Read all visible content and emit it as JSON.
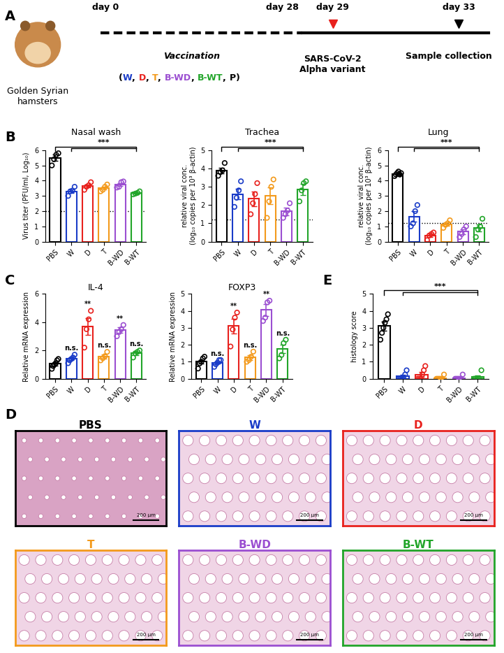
{
  "panel_labels": [
    "A",
    "B",
    "C",
    "D",
    "E"
  ],
  "timeline": {
    "subject": "Golden Syrian\nhamsters",
    "days": [
      "day 0",
      "day 28",
      "day 29",
      "day 33"
    ],
    "vaccination": "Vaccination",
    "groups_open": "(",
    "groups_separator": ", ",
    "groups_close": ")",
    "groups": [
      {
        "text": "W",
        "color": "#1a3cc8"
      },
      {
        "text": "D",
        "color": "#e8211d"
      },
      {
        "text": "T",
        "color": "#f39a1c"
      },
      {
        "text": "B-WD",
        "color": "#9b4fd1"
      },
      {
        "text": "B-WT",
        "color": "#22a52a"
      },
      {
        "text": "P",
        "color": "#000000"
      }
    ],
    "challenge": "SARS-CoV-2\nAlpha variant",
    "collection": "Sample collection"
  },
  "chart_data": [
    {
      "type": "bar",
      "title": "Nasal wash",
      "y_label": "Virus titer (PFU/ml, Log₁₀)",
      "categories": [
        "PBS",
        "W",
        "D",
        "T",
        "B-WD",
        "B-WT"
      ],
      "values": [
        5.5,
        3.3,
        3.65,
        3.5,
        3.75,
        3.2
      ],
      "errors": [
        0.2,
        0.12,
        0.1,
        0.1,
        0.1,
        0.05
      ],
      "points": [
        [
          5.0,
          5.4,
          5.7,
          5.8
        ],
        [
          3.0,
          3.3,
          3.35,
          3.6
        ],
        [
          3.4,
          3.6,
          3.7,
          3.9
        ],
        [
          3.3,
          3.4,
          3.6,
          3.75
        ],
        [
          3.55,
          3.6,
          3.9,
          3.95
        ],
        [
          3.1,
          3.15,
          3.2,
          3.3
        ]
      ],
      "colors": [
        "#000000",
        "#1a3cc8",
        "#e8211d",
        "#f39a1c",
        "#9b4fd1",
        "#22a52a"
      ],
      "ylim": [
        0,
        6
      ],
      "yticks": [
        0,
        1,
        2,
        3,
        4,
        5,
        6
      ],
      "limit_of_detection": 2,
      "significance": "***"
    },
    {
      "type": "bar",
      "title": "Trachea",
      "y_label": "relative viral conc.\n(log₁₀ copies per 10³ β-actin)",
      "categories": [
        "PBS",
        "W",
        "D",
        "T",
        "B-WD",
        "B-WT"
      ],
      "values": [
        3.9,
        2.6,
        2.35,
        2.5,
        1.65,
        2.85
      ],
      "errors": [
        0.15,
        0.3,
        0.4,
        0.45,
        0.2,
        0.3
      ],
      "points": [
        [
          3.6,
          3.8,
          3.9,
          4.3
        ],
        [
          1.9,
          2.4,
          2.8,
          3.3
        ],
        [
          1.5,
          2.1,
          2.6,
          3.2
        ],
        [
          1.3,
          2.2,
          3.0,
          3.4
        ],
        [
          1.3,
          1.5,
          1.7,
          2.1
        ],
        [
          2.2,
          2.8,
          3.2,
          3.3
        ]
      ],
      "colors": [
        "#000000",
        "#1a3cc8",
        "#e8211d",
        "#f39a1c",
        "#9b4fd1",
        "#22a52a"
      ],
      "ylim": [
        0,
        5
      ],
      "yticks": [
        0,
        1,
        2,
        3,
        4,
        5
      ],
      "limit_of_detection": 1.2,
      "significance": "***"
    },
    {
      "type": "bar",
      "title": "Lung",
      "y_label": "relative viral conc.\n(log₁₀ copies per 10³ β-actin)",
      "categories": [
        "PBS",
        "W",
        "D",
        "T",
        "B-WD",
        "B-WT"
      ],
      "values": [
        4.45,
        1.65,
        0.4,
        1.15,
        0.65,
        0.9
      ],
      "errors": [
        0.1,
        0.35,
        0.12,
        0.1,
        0.15,
        0.25
      ],
      "points": [
        [
          4.3,
          4.4,
          4.5,
          4.6,
          4.4,
          4.5
        ],
        [
          1.0,
          1.2,
          2.0,
          2.4
        ],
        [
          0.1,
          0.4,
          0.5,
          0.6
        ],
        [
          0.9,
          1.1,
          1.2,
          1.4
        ],
        [
          0.3,
          0.5,
          0.8,
          1.0
        ],
        [
          0.3,
          0.8,
          1.0,
          1.5
        ]
      ],
      "colors": [
        "#000000",
        "#1a3cc8",
        "#e8211d",
        "#f39a1c",
        "#9b4fd1",
        "#22a52a"
      ],
      "ylim": [
        0,
        6
      ],
      "yticks": [
        0,
        1,
        2,
        3,
        4,
        5,
        6
      ],
      "limit_of_detection": 1.2,
      "significance": "***"
    },
    {
      "type": "bar",
      "title": "IL-4",
      "y_label": "Relative mRNA expression",
      "categories": [
        "PBS",
        "W",
        "D",
        "T",
        "B-WD",
        "B-WT"
      ],
      "values": [
        1.05,
        1.4,
        3.7,
        1.55,
        3.45,
        1.8
      ],
      "errors": [
        0.12,
        0.1,
        0.6,
        0.15,
        0.2,
        0.12
      ],
      "points": [
        [
          0.7,
          0.9,
          1.0,
          1.1,
          1.3,
          1.4
        ],
        [
          1.1,
          1.3,
          1.4,
          1.5,
          1.7
        ],
        [
          2.2,
          3.5,
          4.2,
          4.8
        ],
        [
          1.3,
          1.45,
          1.6,
          1.9
        ],
        [
          3.0,
          3.3,
          3.5,
          3.8
        ],
        [
          1.5,
          1.8,
          1.9,
          2.0
        ]
      ],
      "colors": [
        "#000000",
        "#1a3cc8",
        "#e8211d",
        "#f39a1c",
        "#9b4fd1",
        "#22a52a"
      ],
      "ylim": [
        0,
        6
      ],
      "yticks": [
        0,
        2,
        4,
        6
      ],
      "significance_labels": [
        null,
        "n.s.",
        "**",
        "n.s.",
        "**",
        "n.s."
      ]
    },
    {
      "type": "bar",
      "title": "FOXP3",
      "y_label": "Relative mRNA expression",
      "categories": [
        "PBS",
        "W",
        "D",
        "T",
        "B-WD",
        "B-WT"
      ],
      "values": [
        1.0,
        0.95,
        3.1,
        1.25,
        4.05,
        1.75
      ],
      "errors": [
        0.12,
        0.07,
        0.45,
        0.13,
        0.35,
        0.25
      ],
      "points": [
        [
          0.6,
          0.9,
          1.0,
          1.2,
          1.3
        ],
        [
          0.7,
          0.85,
          0.95,
          1.1,
          1.1
        ],
        [
          1.9,
          2.9,
          3.6,
          3.9
        ],
        [
          1.0,
          1.1,
          1.3,
          1.6
        ],
        [
          3.4,
          3.6,
          4.5,
          4.6
        ],
        [
          1.2,
          1.4,
          2.1,
          2.3
        ]
      ],
      "colors": [
        "#000000",
        "#1a3cc8",
        "#e8211d",
        "#f39a1c",
        "#9b4fd1",
        "#22a52a"
      ],
      "ylim": [
        0,
        5
      ],
      "yticks": [
        0,
        1,
        2,
        3,
        4,
        5
      ],
      "significance_labels": [
        null,
        "n.s.",
        "**",
        "n.s.",
        "**",
        "n.s."
      ]
    },
    {
      "type": "bar",
      "y_label": "histology score",
      "categories": [
        "PBS",
        "W",
        "D",
        "T",
        "B-WD",
        "B-WT"
      ],
      "values": [
        3.1,
        0.15,
        0.25,
        0.05,
        0.05,
        0.1
      ],
      "errors": [
        0.25,
        0.1,
        0.13,
        0.05,
        0.05,
        0.08
      ],
      "points": [
        [
          2.3,
          2.7,
          3.0,
          3.3,
          3.5,
          3.8
        ],
        [
          0,
          0,
          0,
          0,
          0.25,
          0.5
        ],
        [
          0,
          0,
          0,
          0.25,
          0.5,
          0.75
        ],
        [
          0,
          0,
          0,
          0,
          0,
          0.25
        ],
        [
          0,
          0,
          0,
          0,
          0,
          0.25
        ],
        [
          0,
          0,
          0,
          0,
          0,
          0.5
        ]
      ],
      "colors": [
        "#000000",
        "#1a3cc8",
        "#e8211d",
        "#f39a1c",
        "#9b4fd1",
        "#22a52a"
      ],
      "ylim": [
        0,
        5
      ],
      "yticks": [
        0,
        1,
        2,
        3,
        4,
        5
      ],
      "significance": "***"
    }
  ],
  "histology": {
    "images": [
      {
        "label": "PBS",
        "color": "#000000"
      },
      {
        "label": "W",
        "color": "#1a3cc8"
      },
      {
        "label": "D",
        "color": "#e8211d"
      },
      {
        "label": "T",
        "color": "#f39a1c"
      },
      {
        "label": "B-WD",
        "color": "#9b4fd1"
      },
      {
        "label": "B-WT",
        "color": "#22a52a"
      }
    ],
    "scale_bar": "200 μm"
  }
}
